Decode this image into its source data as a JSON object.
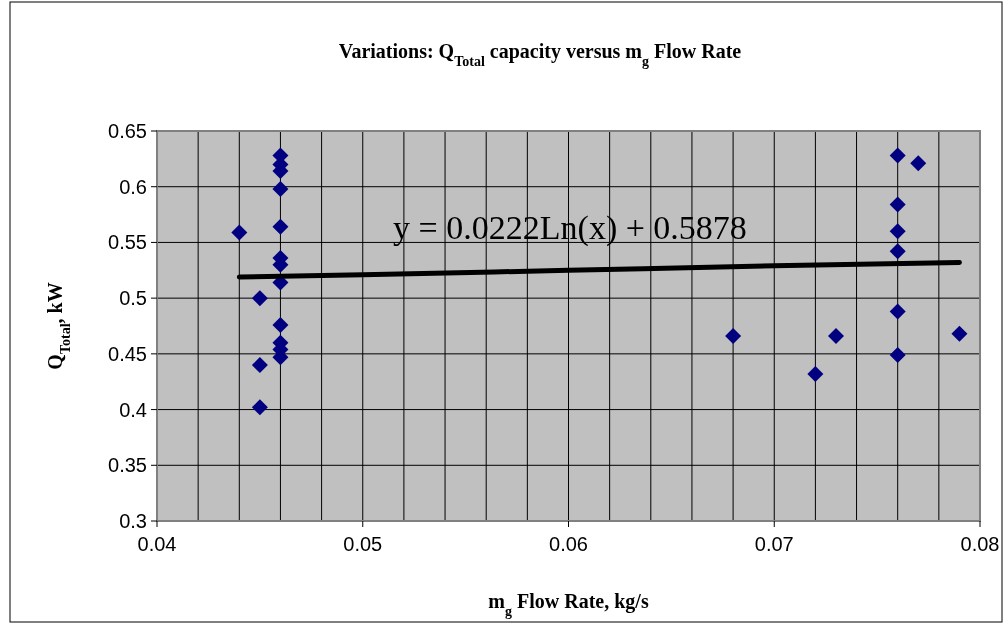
{
  "chart_data": {
    "type": "scatter",
    "title": "Variations: Q$_{Total}$ capacity versus m$_{g}$ Flow Rate",
    "xlabel": "m$_{g}$ Flow Rate, kg/s",
    "ylabel": "Q$_{Total}$,  kW",
    "annotations": [
      "y = 0.0222Ln(x) + 0.5878"
    ],
    "xlim": [
      0.04,
      0.08
    ],
    "ylim": [
      0.3,
      0.65
    ],
    "xticks": [
      0.04,
      {
        "value": 0.042,
        "label": null
      },
      {
        "value": 0.044,
        "label": null
      },
      {
        "value": 0.046,
        "label": null
      },
      {
        "value": 0.048,
        "label": null
      },
      0.05,
      {
        "value": 0.052,
        "label": null
      },
      {
        "value": 0.054,
        "label": null
      },
      {
        "value": 0.056,
        "label": null
      },
      {
        "value": 0.058,
        "label": null
      },
      0.06,
      {
        "value": 0.062,
        "label": null
      },
      {
        "value": 0.064,
        "label": null
      },
      {
        "value": 0.066,
        "label": null
      },
      {
        "value": 0.068,
        "label": null
      },
      0.07,
      {
        "value": 0.072,
        "label": null
      },
      {
        "value": 0.074,
        "label": null
      },
      {
        "value": 0.076,
        "label": null
      },
      {
        "value": 0.078,
        "label": null
      },
      0.08
    ],
    "yticks": [
      0.3,
      0.35,
      0.4,
      0.45,
      0.5,
      0.55,
      0.6,
      0.65
    ],
    "grid": true,
    "marker": "diamond",
    "series": [
      {
        "color": "#000080",
        "x": [
          0.046,
          0.046,
          0.046,
          0.046,
          0.046,
          0.046,
          0.046,
          0.046,
          0.046,
          0.046,
          0.046,
          0.046,
          0.044,
          0.045,
          0.045,
          0.045,
          0.068,
          0.072,
          0.073,
          0.076,
          0.076,
          0.076,
          0.076,
          0.076,
          0.076,
          0.077,
          0.079
        ],
        "values": [
          0.628,
          0.62,
          0.614,
          0.598,
          0.564,
          0.536,
          0.53,
          0.514,
          0.476,
          0.46,
          0.454,
          0.447,
          0.559,
          0.5,
          0.44,
          0.402,
          0.466,
          0.432,
          0.466,
          0.628,
          0.584,
          0.56,
          0.542,
          0.488,
          0.449,
          0.621,
          0.468
        ]
      },
      {
        "type": "line",
        "color": "#000000",
        "marker": "none",
        "x": [
          0.044,
          0.05,
          0.06,
          0.07,
          0.079
        ],
        "values": [
          0.519,
          0.521,
          0.525,
          0.529,
          0.532
        ]
      }
    ]
  }
}
